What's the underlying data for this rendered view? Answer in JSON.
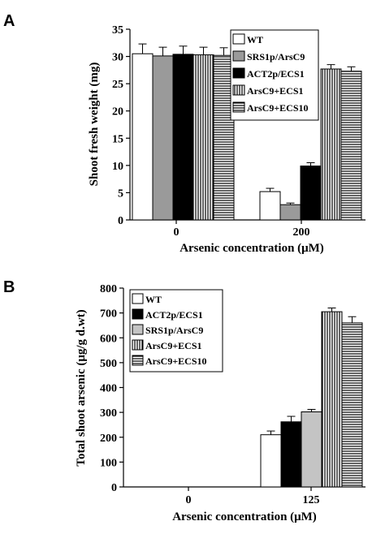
{
  "chart_data": [
    {
      "panel": "A",
      "type": "bar",
      "ylabel": "Shoot fresh weight (mg)",
      "xlabel": "Arsenic concentration (μM)",
      "categories": [
        "0",
        "200"
      ],
      "ylim": [
        0,
        35
      ],
      "yticks": [
        "0",
        "5",
        "10",
        "15",
        "20",
        "25",
        "30",
        "35"
      ],
      "legend_position": "top-right",
      "series": [
        {
          "name": "WT",
          "values": [
            30.5,
            5.2
          ],
          "errors": [
            1.8,
            0.6
          ],
          "fill": "white"
        },
        {
          "name": "SRS1p/ArsC9",
          "values": [
            30.1,
            2.8
          ],
          "errors": [
            1.6,
            0.3
          ],
          "fill": "gray"
        },
        {
          "name": "ACT2p/ECS1",
          "values": [
            30.4,
            9.9
          ],
          "errors": [
            1.5,
            0.6
          ],
          "fill": "black"
        },
        {
          "name": "ArsC9+ECS1",
          "values": [
            30.3,
            27.7
          ],
          "errors": [
            1.4,
            0.8
          ],
          "fill": "vertical"
        },
        {
          "name": "ArsC9+ECS10",
          "values": [
            30.2,
            27.3
          ],
          "errors": [
            1.4,
            0.8
          ],
          "fill": "horizontal"
        }
      ]
    },
    {
      "panel": "B",
      "type": "bar",
      "ylabel": "Total shoot arsenic (μg/g d.wt)",
      "xlabel": "Arsenic concentration (μM)",
      "categories": [
        "0",
        "125"
      ],
      "ylim": [
        0,
        800
      ],
      "yticks": [
        "0",
        "100",
        "200",
        "300",
        "400",
        "500",
        "600",
        "700",
        "800"
      ],
      "legend_position": "top-left",
      "series": [
        {
          "name": "WT",
          "values": [
            0,
            210
          ],
          "errors": [
            0,
            15
          ],
          "fill": "white"
        },
        {
          "name": "ACT2p/ECS1",
          "values": [
            0,
            262
          ],
          "errors": [
            0,
            22
          ],
          "fill": "black"
        },
        {
          "name": "SRS1p/ArsC9",
          "values": [
            0,
            302
          ],
          "errors": [
            0,
            10
          ],
          "fill": "lightgray"
        },
        {
          "name": "ArsC9+ECS1",
          "values": [
            0,
            705
          ],
          "errors": [
            0,
            15
          ],
          "fill": "vertical"
        },
        {
          "name": "ArsC9+ECS10",
          "values": [
            0,
            660
          ],
          "errors": [
            0,
            25
          ],
          "fill": "horizontal"
        }
      ]
    }
  ]
}
